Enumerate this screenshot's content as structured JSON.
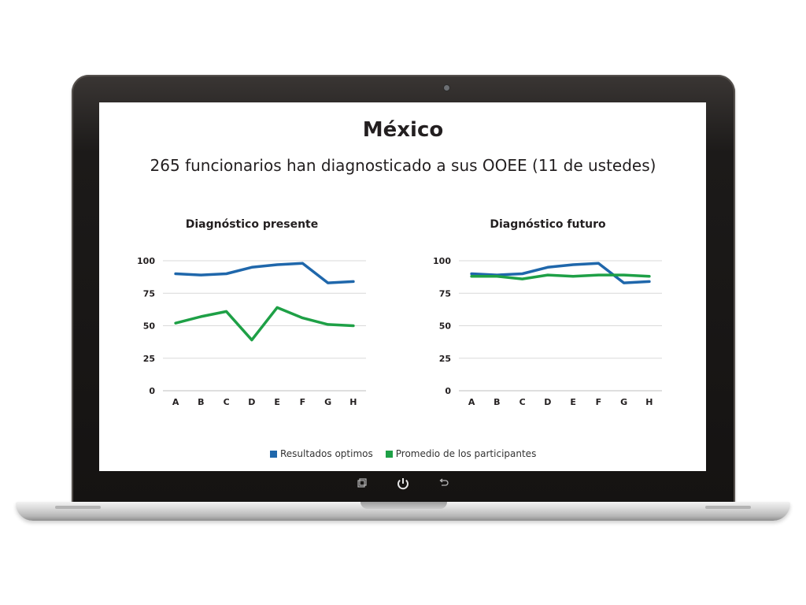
{
  "slide": {
    "title": "México",
    "subtitle": "265 funcionarios han diagnosticado a sus OOEE (11 de ustedes)"
  },
  "colors": {
    "series_blue": "#1f67ab",
    "series_green": "#1ea046",
    "grid": "#d9d9d9",
    "text": "#231f20"
  },
  "legend": {
    "items": [
      "Resultados optimos",
      "Promedio de los participantes"
    ]
  },
  "device": {
    "buttons": [
      "recent-apps-icon",
      "power-icon",
      "back-icon"
    ]
  },
  "chart_data": [
    {
      "type": "line",
      "title": "Diagnóstico presente",
      "categories": [
        "A",
        "B",
        "C",
        "D",
        "E",
        "F",
        "G",
        "H"
      ],
      "ylim": [
        0,
        100
      ],
      "yticks": [
        0,
        25,
        50,
        75,
        100
      ],
      "grid": true,
      "series": [
        {
          "name": "Resultados optimos",
          "values": [
            90,
            89,
            90,
            95,
            97,
            98,
            83,
            84
          ]
        },
        {
          "name": "Promedio de los participantes",
          "values": [
            52,
            57,
            61,
            39,
            64,
            56,
            51,
            50
          ]
        }
      ]
    },
    {
      "type": "line",
      "title": "Diagnóstico futuro",
      "categories": [
        "A",
        "B",
        "C",
        "D",
        "E",
        "F",
        "G",
        "H"
      ],
      "ylim": [
        0,
        100
      ],
      "yticks": [
        0,
        25,
        50,
        75,
        100
      ],
      "grid": true,
      "series": [
        {
          "name": "Resultados optimos",
          "values": [
            90,
            89,
            90,
            95,
            97,
            98,
            83,
            84
          ]
        },
        {
          "name": "Promedio de los participantes",
          "values": [
            88,
            88,
            86,
            89,
            88,
            89,
            89,
            88
          ]
        }
      ]
    }
  ]
}
